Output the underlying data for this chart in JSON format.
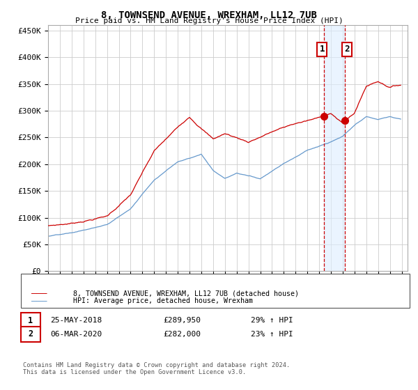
{
  "title": "8, TOWNSEND AVENUE, WREXHAM, LL12 7UB",
  "subtitle": "Price paid vs. HM Land Registry's House Price Index (HPI)",
  "ylabel_ticks": [
    "£0",
    "£50K",
    "£100K",
    "£150K",
    "£200K",
    "£250K",
    "£300K",
    "£350K",
    "£400K",
    "£450K"
  ],
  "ylim": [
    0,
    460000
  ],
  "xlim_start": 1995.0,
  "xlim_end": 2025.5,
  "legend_line1": "8, TOWNSEND AVENUE, WREXHAM, LL12 7UB (detached house)",
  "legend_line2": "HPI: Average price, detached house, Wrexham",
  "legend_color1": "#cc0000",
  "legend_color2": "#6699cc",
  "marker1_x": 2018.39,
  "marker1_y": 289950,
  "marker2_x": 2020.17,
  "marker2_y": 282000,
  "annotation1_label": "1",
  "annotation2_label": "2",
  "annotation1_date": "25-MAY-2018",
  "annotation1_price": "£289,950",
  "annotation1_hpi": "29% ↑ HPI",
  "annotation2_date": "06-MAR-2020",
  "annotation2_price": "£282,000",
  "annotation2_hpi": "23% ↑ HPI",
  "footnote": "Contains HM Land Registry data © Crown copyright and database right 2024.\nThis data is licensed under the Open Government Licence v3.0.",
  "background_color": "#ffffff",
  "plot_bg_color": "#ffffff",
  "grid_color": "#cccccc",
  "shaded_region_color": "#ddeeff",
  "dashed_line_color": "#cc0000"
}
